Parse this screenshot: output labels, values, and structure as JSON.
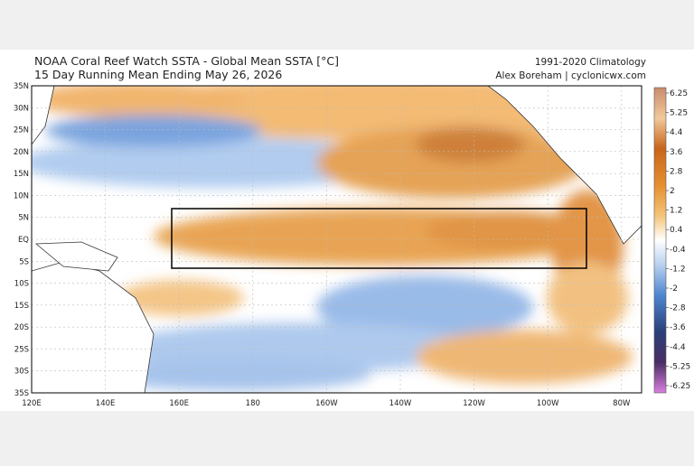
{
  "header": {
    "title": "NOAA Coral Reef Watch SSTA - Global Mean SSTA [°C]",
    "subtitle": "15 Day Running Mean Ending May 26, 2026",
    "climatology": "1991-2020 Climatology",
    "credit": "Alex Boreham | cyclonicwx.com"
  },
  "map": {
    "lat_labels": [
      "35N",
      "30N",
      "25N",
      "20N",
      "15N",
      "10N",
      "5N",
      "EQ",
      "5S",
      "10S",
      "15S",
      "20S",
      "25S",
      "30S",
      "35S"
    ],
    "lon_labels": [
      "120E",
      "140E",
      "160E",
      "180",
      "160W",
      "140W",
      "120W",
      "100W",
      "80W"
    ]
  },
  "colorbar": {
    "labels": [
      6.25,
      5.25,
      4.4,
      3.6,
      2.8,
      2,
      1.2,
      0.4,
      -0.4,
      -1.2,
      -2,
      -2.8,
      -3.6,
      -4.4,
      -5.25,
      -6.25
    ]
  }
}
